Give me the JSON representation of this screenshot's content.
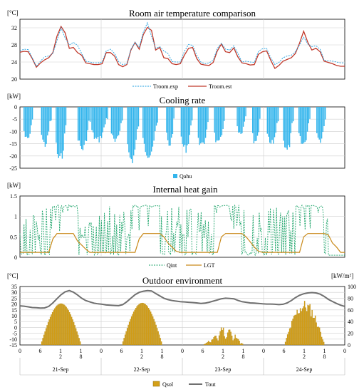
{
  "chart_data": [
    {
      "type": "line",
      "title": "Room air temperature comparison",
      "ylabel": "[°C]",
      "ylim": [
        20,
        34
      ],
      "yticks": [
        "20",
        "24",
        "28",
        "32"
      ],
      "x_days": 4,
      "grid": true,
      "legend_position": "bottom",
      "series": [
        {
          "name": "Troom.exp",
          "color": "#1f9fe0",
          "dash": true,
          "values": [
            26.6,
            27.0,
            26.9,
            25.0,
            23.0,
            24.2,
            25.2,
            25.4,
            26.0,
            29.0,
            32.0,
            29.6,
            28.0,
            28.6,
            27.9,
            26.0,
            24.2,
            24.0,
            23.8,
            23.8,
            24.0,
            26.6,
            27.0,
            26.0,
            24.1,
            23.4,
            23.6,
            27.0,
            28.6,
            27.4,
            31.0,
            33.2,
            30.0,
            27.2,
            27.6,
            26.6,
            26.0,
            24.1,
            24.0,
            24.0,
            26.5,
            28.1,
            27.9,
            25.6,
            24.0,
            23.6,
            23.8,
            24.4,
            27.2,
            28.4,
            27.0,
            26.8,
            27.8,
            26.0,
            24.0,
            24.2,
            24.0,
            23.9,
            26.5,
            27.1,
            27.2,
            25.0,
            23.4,
            23.9,
            25.0,
            25.4,
            25.6,
            26.4,
            28.0,
            29.8,
            28.2,
            27.6,
            27.8,
            27.0,
            24.4,
            24.3,
            24.2,
            24.0,
            23.8,
            23.8
          ]
        },
        {
          "name": "Troom.est",
          "color": "#c0392b",
          "dash": false,
          "values": [
            26.3,
            26.5,
            26.4,
            24.8,
            22.8,
            23.8,
            24.5,
            25.0,
            26.2,
            30.0,
            32.3,
            30.8,
            27.2,
            27.4,
            26.2,
            25.6,
            23.8,
            23.6,
            23.4,
            23.4,
            23.6,
            26.2,
            26.2,
            25.4,
            23.4,
            22.9,
            23.4,
            26.8,
            28.6,
            27.0,
            30.4,
            32.1,
            31.4,
            26.8,
            27.4,
            25.0,
            24.8,
            23.6,
            23.4,
            23.6,
            25.6,
            27.2,
            27.4,
            24.8,
            23.5,
            23.3,
            23.2,
            23.9,
            26.6,
            28.2,
            26.4,
            26.2,
            27.3,
            25.2,
            23.8,
            23.6,
            23.3,
            23.4,
            25.8,
            26.4,
            26.6,
            24.4,
            22.5,
            23.2,
            24.2,
            24.6,
            25.0,
            26.0,
            28.4,
            31.2,
            28.6,
            26.8,
            27.2,
            26.4,
            24.2,
            23.9,
            23.6,
            23.2,
            23.0,
            23.0
          ]
        }
      ]
    },
    {
      "type": "bar",
      "title": "Cooling rate",
      "ylabel": "[kW]",
      "ylim": [
        -25,
        0
      ],
      "yticks": [
        "-25",
        "-20",
        "-15",
        "-10",
        "-5",
        "0"
      ],
      "x_days": 4,
      "grid": true,
      "legend_position": "bottom",
      "series": [
        {
          "name": "Qahu",
          "color": "#33b5ec",
          "blocks": [
            {
              "start": 0.22,
              "end": 0.8,
              "peak": -15
            },
            {
              "start": 1.3,
              "end": 1.9,
              "peak": -17
            },
            {
              "start": 2.2,
              "end": 2.85,
              "peak": -24
            },
            {
              "start": 3.55,
              "end": 4.3,
              "peak": -19
            },
            {
              "start": 4.4,
              "end": 5.4,
              "peak": -15
            },
            {
              "start": 5.6,
              "end": 6.3,
              "peak": -16
            },
            {
              "start": 6.6,
              "end": 7.3,
              "peak": -24
            },
            {
              "start": 7.55,
              "end": 8.5,
              "peak": -21
            },
            {
              "start": 9.0,
              "end": 9.5,
              "peak": -17
            },
            {
              "start": 9.9,
              "end": 10.6,
              "peak": -19
            },
            {
              "start": 10.95,
              "end": 11.6,
              "peak": -18
            },
            {
              "start": 11.95,
              "end": 12.6,
              "peak": -17
            },
            {
              "start": 13.35,
              "end": 13.9,
              "peak": -13
            },
            {
              "start": 14.3,
              "end": 14.8,
              "peak": -17
            },
            {
              "start": 15.2,
              "end": 15.9,
              "peak": -17
            },
            {
              "start": 16.2,
              "end": 16.8,
              "peak": -20
            },
            {
              "start": 17.15,
              "end": 17.85,
              "peak": -17
            },
            {
              "start": 18.25,
              "end": 18.8,
              "peak": -15
            }
          ]
        }
      ]
    },
    {
      "type": "line",
      "title": "Internal heat gain",
      "ylabel": "[kW]",
      "ylim": [
        0,
        1.5
      ],
      "yticks": [
        "0",
        "0.5",
        "1",
        "1.5"
      ],
      "x_days": 4,
      "grid": true,
      "legend_position": "bottom",
      "series": [
        {
          "name": "Qint",
          "color": "#1aa368",
          "dash": true,
          "pattern": "occupancy-daily",
          "values": []
        },
        {
          "name": "LGT",
          "color": "#c98a1b",
          "dash": false,
          "values": [
            0.12,
            0.12,
            0.12,
            0.12,
            0.12,
            0.12,
            0.12,
            0.12,
            0.45,
            0.58,
            0.58,
            0.58,
            0.58,
            0.58,
            0.4,
            0.3,
            0.2,
            0.12,
            0.12,
            0.12,
            0.12,
            0.12,
            0.12,
            0.12,
            0.12,
            0.12,
            0.12,
            0.12,
            0.12,
            0.45,
            0.58,
            0.58,
            0.58,
            0.58,
            0.58,
            0.5,
            0.35,
            0.25,
            0.15,
            0.12,
            0.12,
            0.12,
            0.12,
            0.12,
            0.12,
            0.12,
            0.12,
            0.12,
            0.12,
            0.5,
            0.58,
            0.58,
            0.58,
            0.58,
            0.58,
            0.5,
            0.38,
            0.25,
            0.15,
            0.12,
            0.12,
            0.12,
            0.12,
            0.12,
            0.12,
            0.12,
            0.12,
            0.12,
            0.12,
            0.5,
            0.58,
            0.58,
            0.58,
            0.58,
            0.58,
            0.55,
            0.35,
            0.25,
            0.12,
            0.12
          ]
        }
      ]
    },
    {
      "type": "bar",
      "title": "Outdoor environment",
      "ylabel": "[°C]",
      "y2label": "[kW/m²]",
      "ylim": [
        -15,
        35
      ],
      "y2lim": [
        0,
        100
      ],
      "yticks": [
        "-15",
        "-10",
        "-5",
        "0",
        "5",
        "10",
        "15",
        "20",
        "25",
        "30",
        "35"
      ],
      "y2ticks": [
        "0",
        "20",
        "40",
        "60",
        "80",
        "100"
      ],
      "x_days": 4,
      "grid": true,
      "legend_position": "bottom",
      "xticks_per_day": [
        "0",
        "6",
        "1\n2",
        "1\n8"
      ],
      "x_final_tick": "0",
      "day_labels": [
        "21-Sep",
        "22-Sep",
        "23-Sep",
        "24-Sep"
      ],
      "series": [
        {
          "name": "Qsol",
          "color": "#d4a017",
          "axis": "right",
          "day_peaks": [
            71,
            72,
            37,
            78
          ],
          "day_shape": [
            "bell",
            "bell",
            "cloudy",
            "noisy"
          ]
        },
        {
          "name": "Tout",
          "color": "#707070",
          "axis": "left",
          "values": [
            18.5,
            18.2,
            17.6,
            17.0,
            16.8,
            16.5,
            16.7,
            18.0,
            21.0,
            24.5,
            28.0,
            30.5,
            31.5,
            30.2,
            27.8,
            25.0,
            23.0,
            21.8,
            20.8,
            20.2,
            19.8,
            19.2,
            19.0,
            18.8,
            18.6,
            19.5,
            22.0,
            25.0,
            28.0,
            30.0,
            31.0,
            31.5,
            31.2,
            29.0,
            27.0,
            25.0,
            23.8,
            23.0,
            22.5,
            22.0,
            21.8,
            21.5,
            21.3,
            21.0,
            20.5,
            20.8,
            21.5,
            22.5,
            23.5,
            24.5,
            25.0,
            24.8,
            24.5,
            23.2,
            22.0,
            21.5,
            21.0,
            20.8,
            20.5,
            20.2,
            20.0,
            20.0,
            19.8,
            19.5,
            19.8,
            21.0,
            23.0,
            25.5,
            27.5,
            28.8,
            29.5,
            29.8,
            29.5,
            28.5,
            26.5,
            24.0,
            22.2,
            20.5,
            19.0,
            18.0
          ]
        }
      ]
    }
  ]
}
